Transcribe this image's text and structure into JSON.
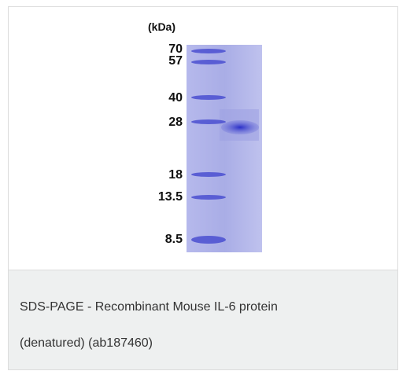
{
  "image": {
    "unit_label": "(kDa)",
    "markers": [
      "70",
      "57",
      "40",
      "28",
      "18",
      "13.5",
      "8.5"
    ]
  },
  "caption": {
    "lines": [
      "SDS-PAGE - Recombinant Mouse IL-6 protein",
      "(denatured) (ab187460)"
    ]
  }
}
